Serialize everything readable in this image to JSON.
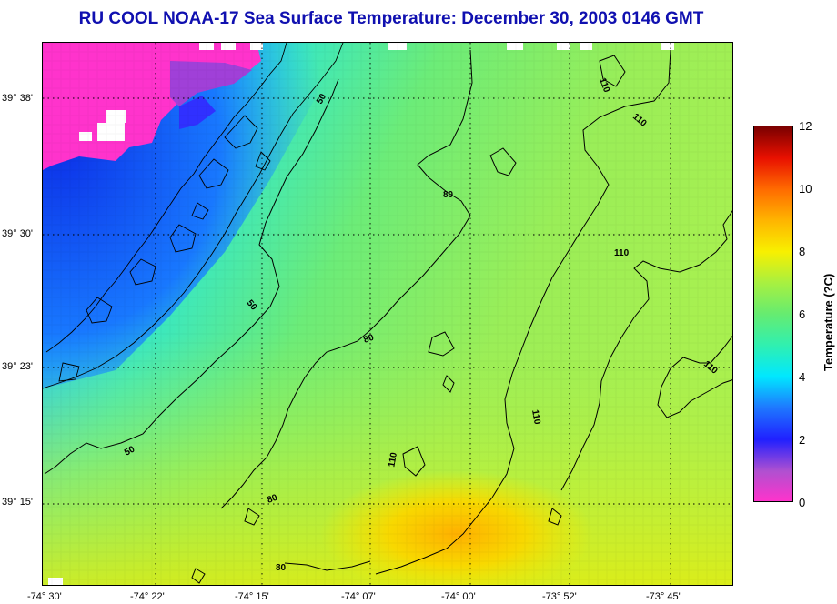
{
  "title": "RU COOL  NOAA-17  Sea Surface Temperature:  December 30, 2003 0146 GMT",
  "latitude_labels": [
    "39° 38'",
    "39° 30'",
    "39° 23'",
    "39° 15'"
  ],
  "longitude_labels": [
    "-74° 30'",
    "-74° 22'",
    "-74° 15'",
    "-74° 07'",
    "-74° 00'",
    "-73° 52'",
    "-73° 45'"
  ],
  "contour_labels": [
    "50",
    "50",
    "50",
    "80",
    "80",
    "80",
    "80",
    "110",
    "110",
    "110",
    "110",
    "110",
    "110"
  ],
  "colorbar": {
    "label": "Temperature (?C)",
    "ticks": [
      "0",
      "2",
      "4",
      "6",
      "8",
      "10",
      "12"
    ],
    "range": [
      0,
      12
    ]
  },
  "colors": {
    "title": "#1010b0",
    "land": "#ff33cc",
    "cold_water": "#1e60ff",
    "mid_water": "#66ec70",
    "warm_water": "#f4e800"
  }
}
